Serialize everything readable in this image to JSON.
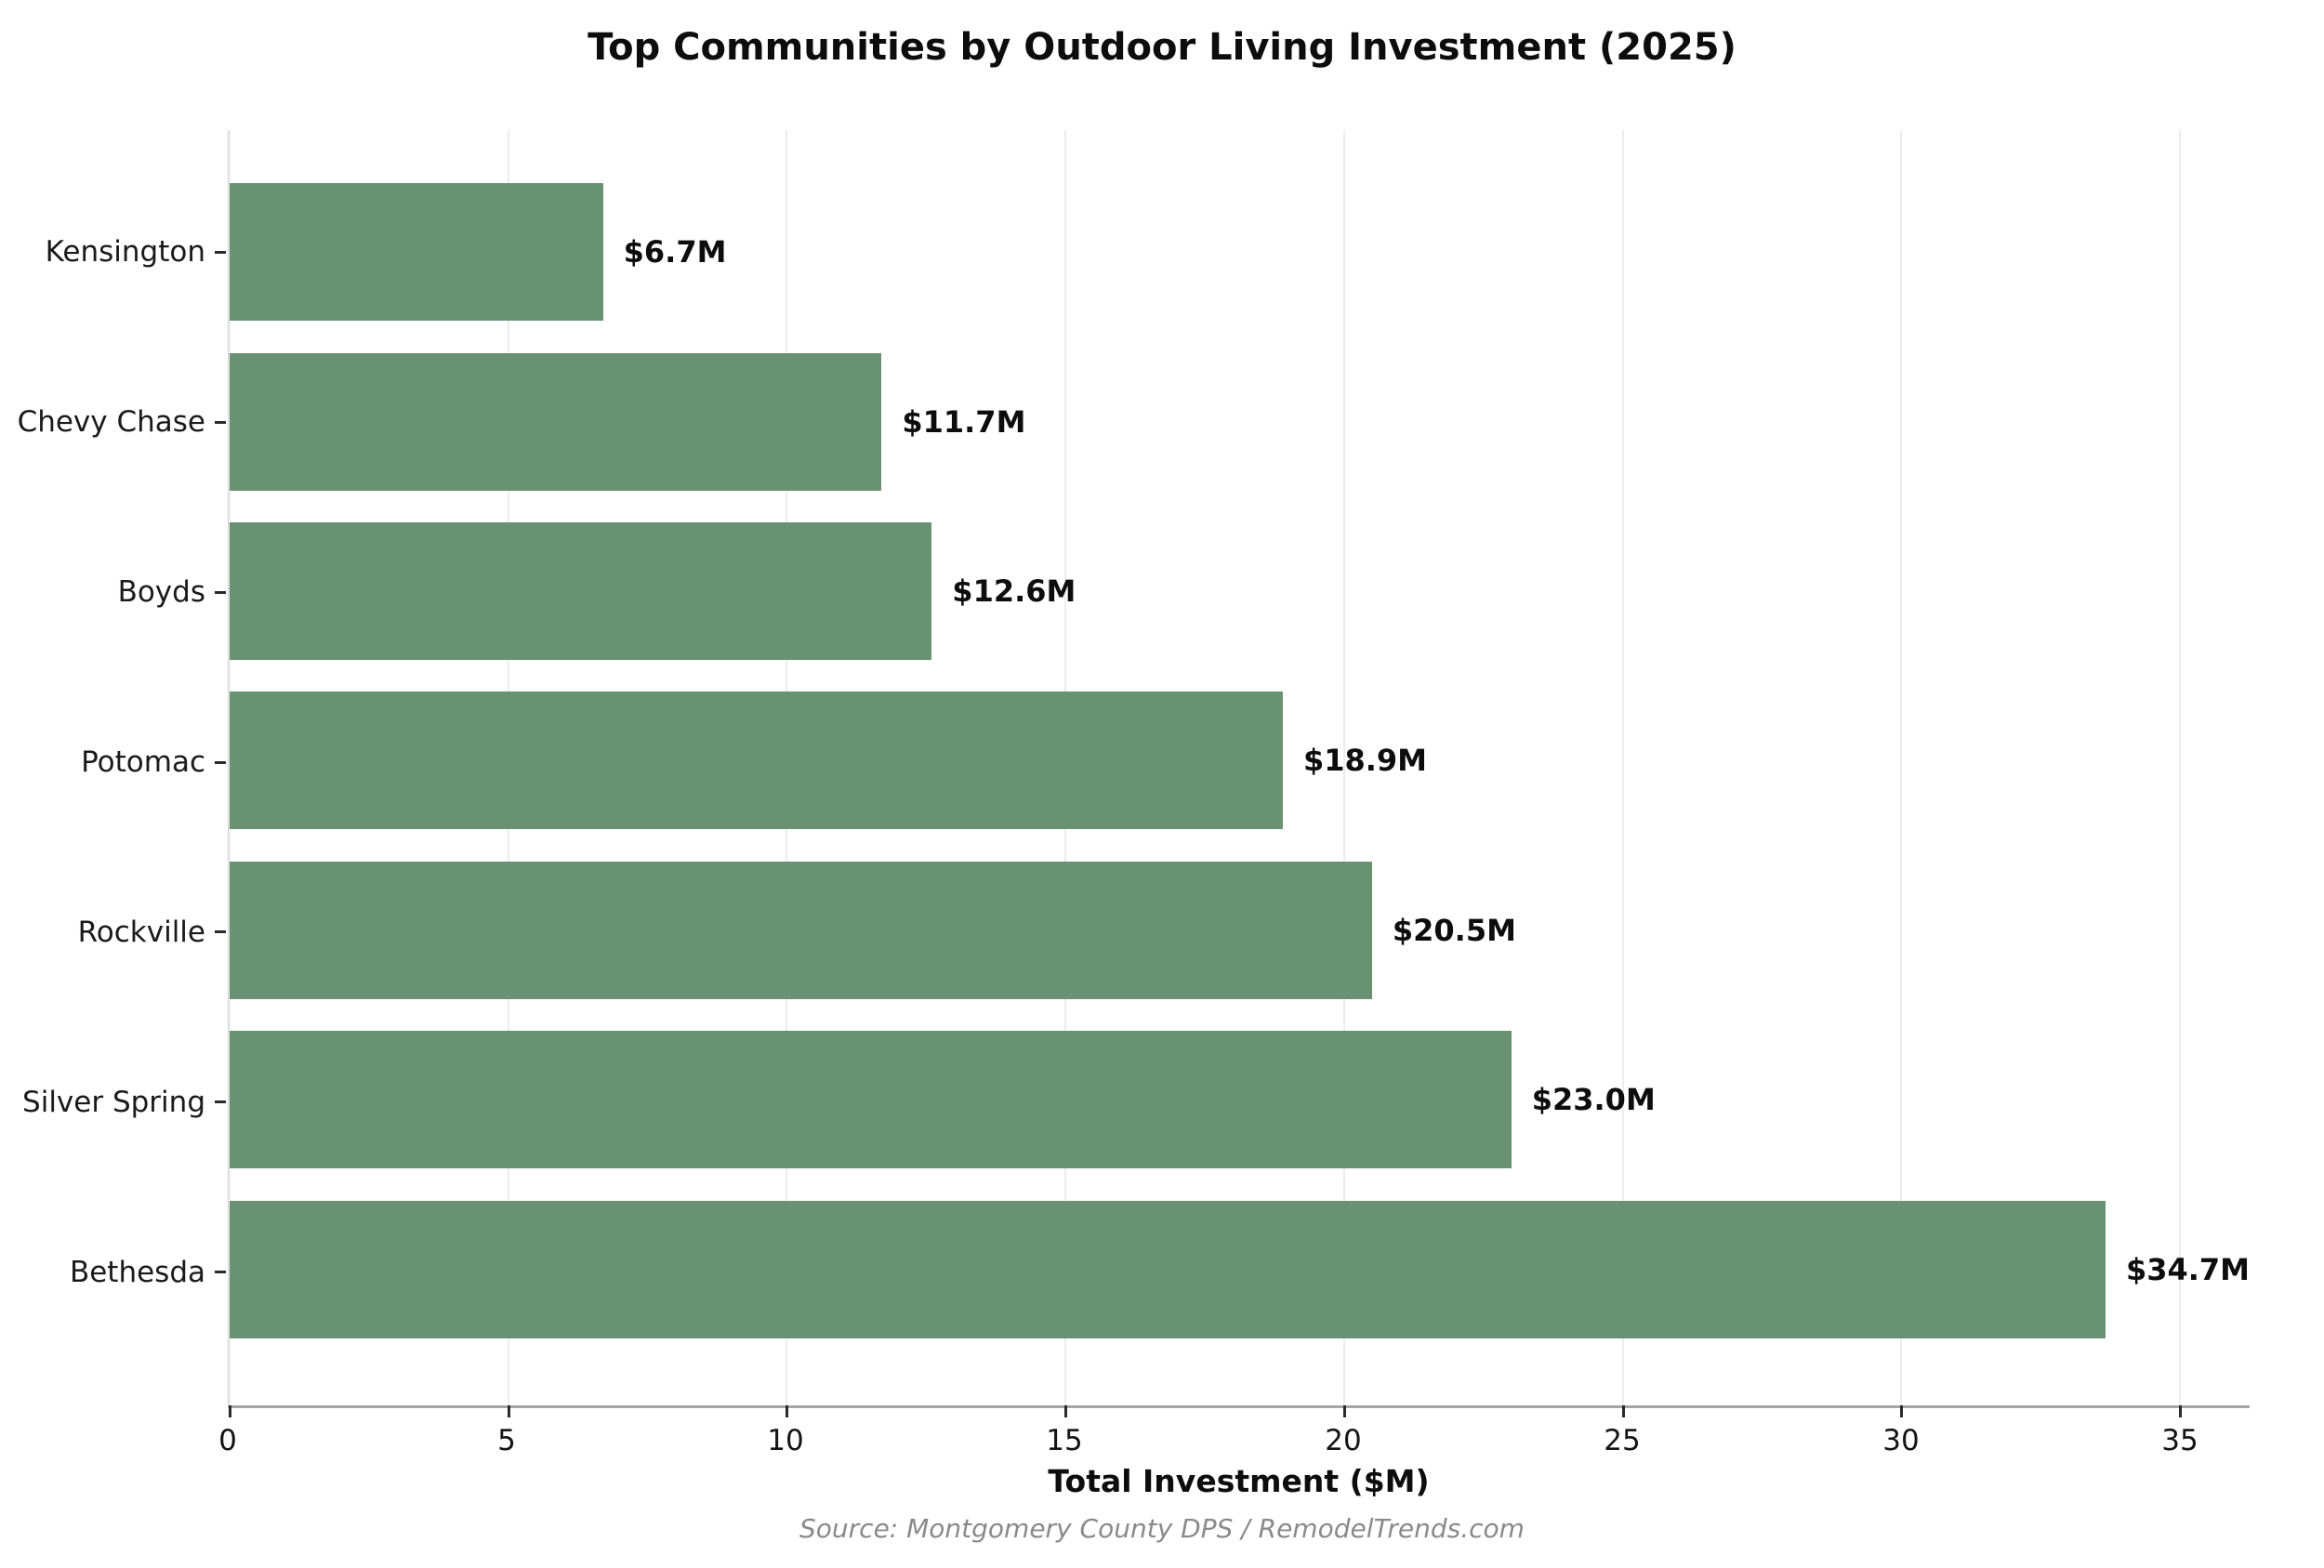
{
  "chart_data": {
    "type": "bar",
    "orientation": "horizontal",
    "title": "Top Communities by Outdoor Living Investment (2025)",
    "categories": [
      "Kensington",
      "Chevy Chase",
      "Boyds",
      "Potomac",
      "Rockville",
      "Silver Spring",
      "Bethesda"
    ],
    "values": [
      6.7,
      11.7,
      12.6,
      18.9,
      20.5,
      23.0,
      34.7
    ],
    "value_labels": [
      "$6.7M",
      "$11.7M",
      "$12.6M",
      "$18.9M",
      "$20.5M",
      "$23.0M",
      "$34.7M"
    ],
    "xlabel": "Total Investment ($M)",
    "ylabel": "",
    "xticks": [
      0,
      5,
      10,
      15,
      20,
      25,
      30,
      35
    ],
    "xlim": [
      0,
      36.25
    ],
    "grid": true,
    "legend": false,
    "source": "Source: Montgomery County DPS / RemodelTrends.com"
  },
  "colors": {
    "background": "#ffffff",
    "bar": "#689272",
    "gridline": "#ececec",
    "axis_line": "#a6a6a6",
    "left_spine": "#d4d4d4",
    "tick_mark": "#2b2b2b",
    "text": "#0d0d0d",
    "source_text": "#8a8a8a"
  }
}
